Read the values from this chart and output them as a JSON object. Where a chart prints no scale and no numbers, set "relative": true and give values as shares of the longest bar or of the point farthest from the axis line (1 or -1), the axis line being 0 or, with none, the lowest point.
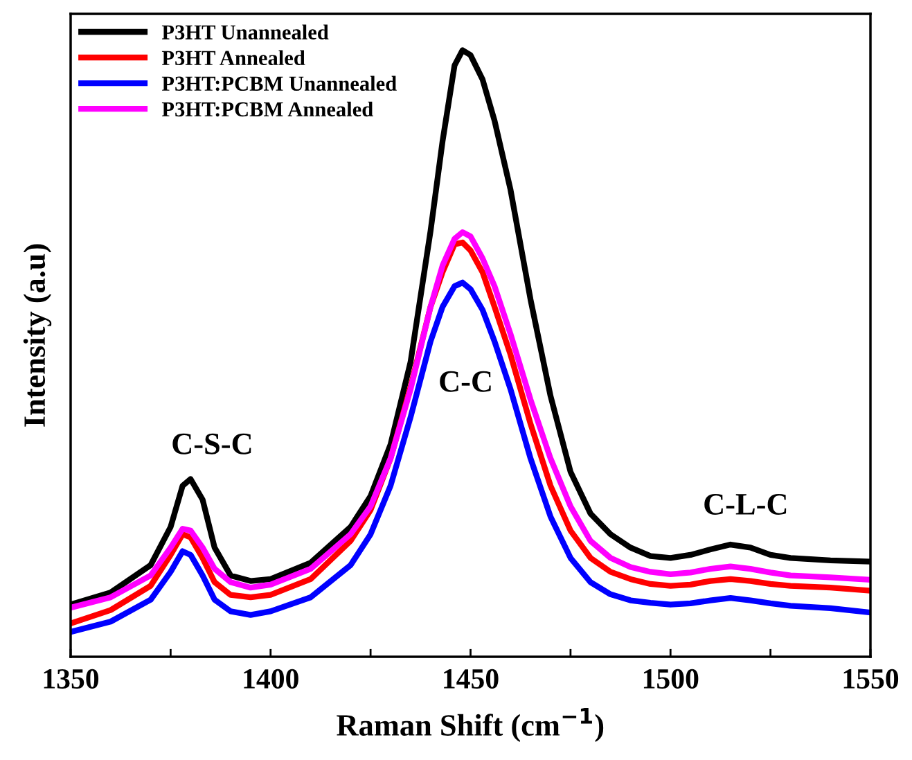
{
  "chart_data": {
    "type": "line",
    "xlabel": "Raman Shift (cm$^{−1}$)",
    "ylabel": "Intensity (a.u)",
    "relative": true,
    "legend": "top left",
    "grid": false,
    "marker": "none",
    "line_style": "solid",
    "x": [
      1350,
      1360,
      1370,
      1375,
      1378,
      1380,
      1383,
      1386,
      1390,
      1395,
      1400,
      1410,
      1420,
      1425,
      1430,
      1435,
      1440,
      1443,
      1446,
      1448,
      1450,
      1453,
      1456,
      1460,
      1465,
      1470,
      1475,
      1480,
      1485,
      1490,
      1495,
      1500,
      1505,
      1510,
      1515,
      1520,
      1525,
      1530,
      1540,
      1550
    ],
    "xlim": [
      1350,
      1550
    ],
    "xticks": [
      1350,
      {
        "value": 1375,
        "label": null
      },
      1400,
      {
        "value": 1425,
        "label": null
      },
      1450,
      {
        "value": 1475,
        "label": null
      },
      1500,
      {
        "value": 1525,
        "label": null
      },
      1550
    ],
    "series": [
      {
        "name": "P3HT Unannealed",
        "color": "#000000",
        "values": [
          0.086,
          0.106,
          0.151,
          0.214,
          0.282,
          0.293,
          0.259,
          0.18,
          0.134,
          0.125,
          0.128,
          0.155,
          0.214,
          0.265,
          0.35,
          0.486,
          0.702,
          0.85,
          0.975,
          1.0,
          0.992,
          0.952,
          0.884,
          0.77,
          0.589,
          0.43,
          0.305,
          0.236,
          0.202,
          0.18,
          0.166,
          0.163,
          0.168,
          0.177,
          0.185,
          0.18,
          0.168,
          0.163,
          0.159,
          0.157
        ]
      },
      {
        "name": "P3HT Annealed",
        "color": "#ff0000",
        "values": [
          0.055,
          0.077,
          0.117,
          0.168,
          0.202,
          0.197,
          0.163,
          0.123,
          0.102,
          0.098,
          0.102,
          0.128,
          0.191,
          0.242,
          0.327,
          0.445,
          0.577,
          0.634,
          0.68,
          0.683,
          0.67,
          0.634,
          0.577,
          0.498,
          0.384,
          0.282,
          0.208,
          0.163,
          0.14,
          0.128,
          0.12,
          0.117,
          0.119,
          0.125,
          0.128,
          0.125,
          0.12,
          0.117,
          0.114,
          0.109
        ]
      },
      {
        "name": "P3HT:PCBM Unannealed",
        "color": "#0000ff",
        "values": [
          0.041,
          0.058,
          0.094,
          0.14,
          0.174,
          0.168,
          0.134,
          0.094,
          0.075,
          0.069,
          0.075,
          0.098,
          0.151,
          0.202,
          0.282,
          0.395,
          0.52,
          0.577,
          0.611,
          0.617,
          0.606,
          0.572,
          0.52,
          0.441,
          0.327,
          0.231,
          0.163,
          0.123,
          0.103,
          0.093,
          0.089,
          0.086,
          0.088,
          0.093,
          0.097,
          0.093,
          0.088,
          0.084,
          0.08,
          0.073
        ]
      },
      {
        "name": "P3HT:PCBM Annealed",
        "color": "#ff00ff",
        "values": [
          0.081,
          0.098,
          0.134,
          0.18,
          0.211,
          0.208,
          0.18,
          0.145,
          0.123,
          0.114,
          0.119,
          0.145,
          0.202,
          0.248,
          0.327,
          0.441,
          0.577,
          0.645,
          0.689,
          0.7,
          0.693,
          0.657,
          0.611,
          0.532,
          0.424,
          0.327,
          0.248,
          0.191,
          0.163,
          0.148,
          0.14,
          0.136,
          0.139,
          0.145,
          0.149,
          0.145,
          0.139,
          0.134,
          0.131,
          0.127
        ]
      }
    ],
    "annotations": [
      "C-S-C",
      "C-C",
      "C-L-C"
    ]
  }
}
